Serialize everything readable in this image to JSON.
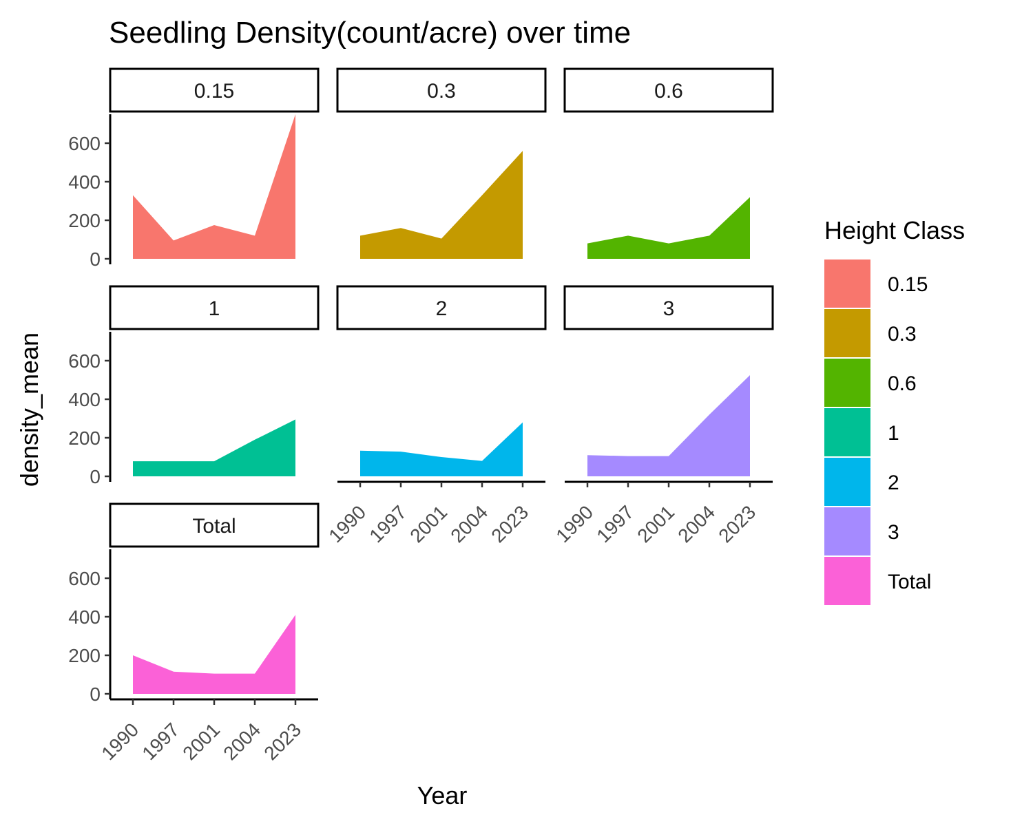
{
  "chart_data": {
    "type": "area",
    "title": "Seedling Density(count/acre) over time",
    "xlabel": "Year",
    "ylabel": "density_mean",
    "x": [
      "1990",
      "1997",
      "2001",
      "2004",
      "2023"
    ],
    "ylim": [
      0,
      750
    ],
    "yticks": [
      0,
      200,
      400,
      600
    ],
    "legend": {
      "title": "Height Class",
      "position": "right"
    },
    "grid": false,
    "facets": [
      {
        "name": "0.15",
        "color": "#F8766D",
        "values": [
          330,
          95,
          175,
          120,
          750
        ]
      },
      {
        "name": "0.3",
        "color": "#C49A00",
        "values": [
          120,
          160,
          105,
          330,
          560
        ]
      },
      {
        "name": "0.6",
        "color": "#53B400",
        "values": [
          80,
          120,
          80,
          120,
          320
        ]
      },
      {
        "name": "1",
        "color": "#00C094",
        "values": [
          78,
          78,
          78,
          190,
          295
        ]
      },
      {
        "name": "2",
        "color": "#00B6EB",
        "values": [
          133,
          128,
          100,
          80,
          280
        ]
      },
      {
        "name": "3",
        "color": "#A58AFF",
        "values": [
          110,
          105,
          105,
          320,
          525
        ]
      },
      {
        "name": "Total",
        "color": "#FB61D7",
        "values": [
          200,
          115,
          105,
          105,
          410
        ]
      }
    ]
  }
}
